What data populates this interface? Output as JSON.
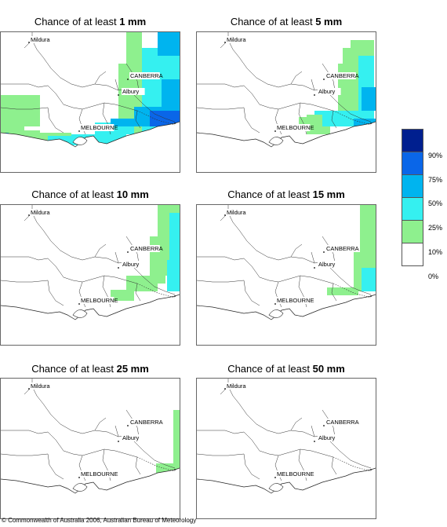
{
  "panels": [
    {
      "title_prefix": "Chance of at least ",
      "title_value": "1 mm"
    },
    {
      "title_prefix": "Chance of at least ",
      "title_value": "5 mm"
    },
    {
      "title_prefix": "Chance of at least ",
      "title_value": "10 mm"
    },
    {
      "title_prefix": "Chance of at least ",
      "title_value": "15 mm"
    },
    {
      "title_prefix": "Chance of at least ",
      "title_value": "25 mm"
    },
    {
      "title_prefix": "Chance of at least ",
      "title_value": "50 mm"
    }
  ],
  "places": {
    "mildura": "Mildura",
    "canberra": "CANBERRA",
    "albury": "Albury",
    "melbourne": "MELBOURNE"
  },
  "legend": {
    "ticks": [
      "90%",
      "75%",
      "50%",
      "25%",
      "10%",
      "0%"
    ],
    "colors": [
      "#001f8f",
      "#0a66e8",
      "#00b4ef",
      "#35f0f0",
      "#8ef08e",
      "#ffffff"
    ]
  },
  "copyright": "© Commonwealth of Australia 2006, Australian Bureau of Meteorology"
}
